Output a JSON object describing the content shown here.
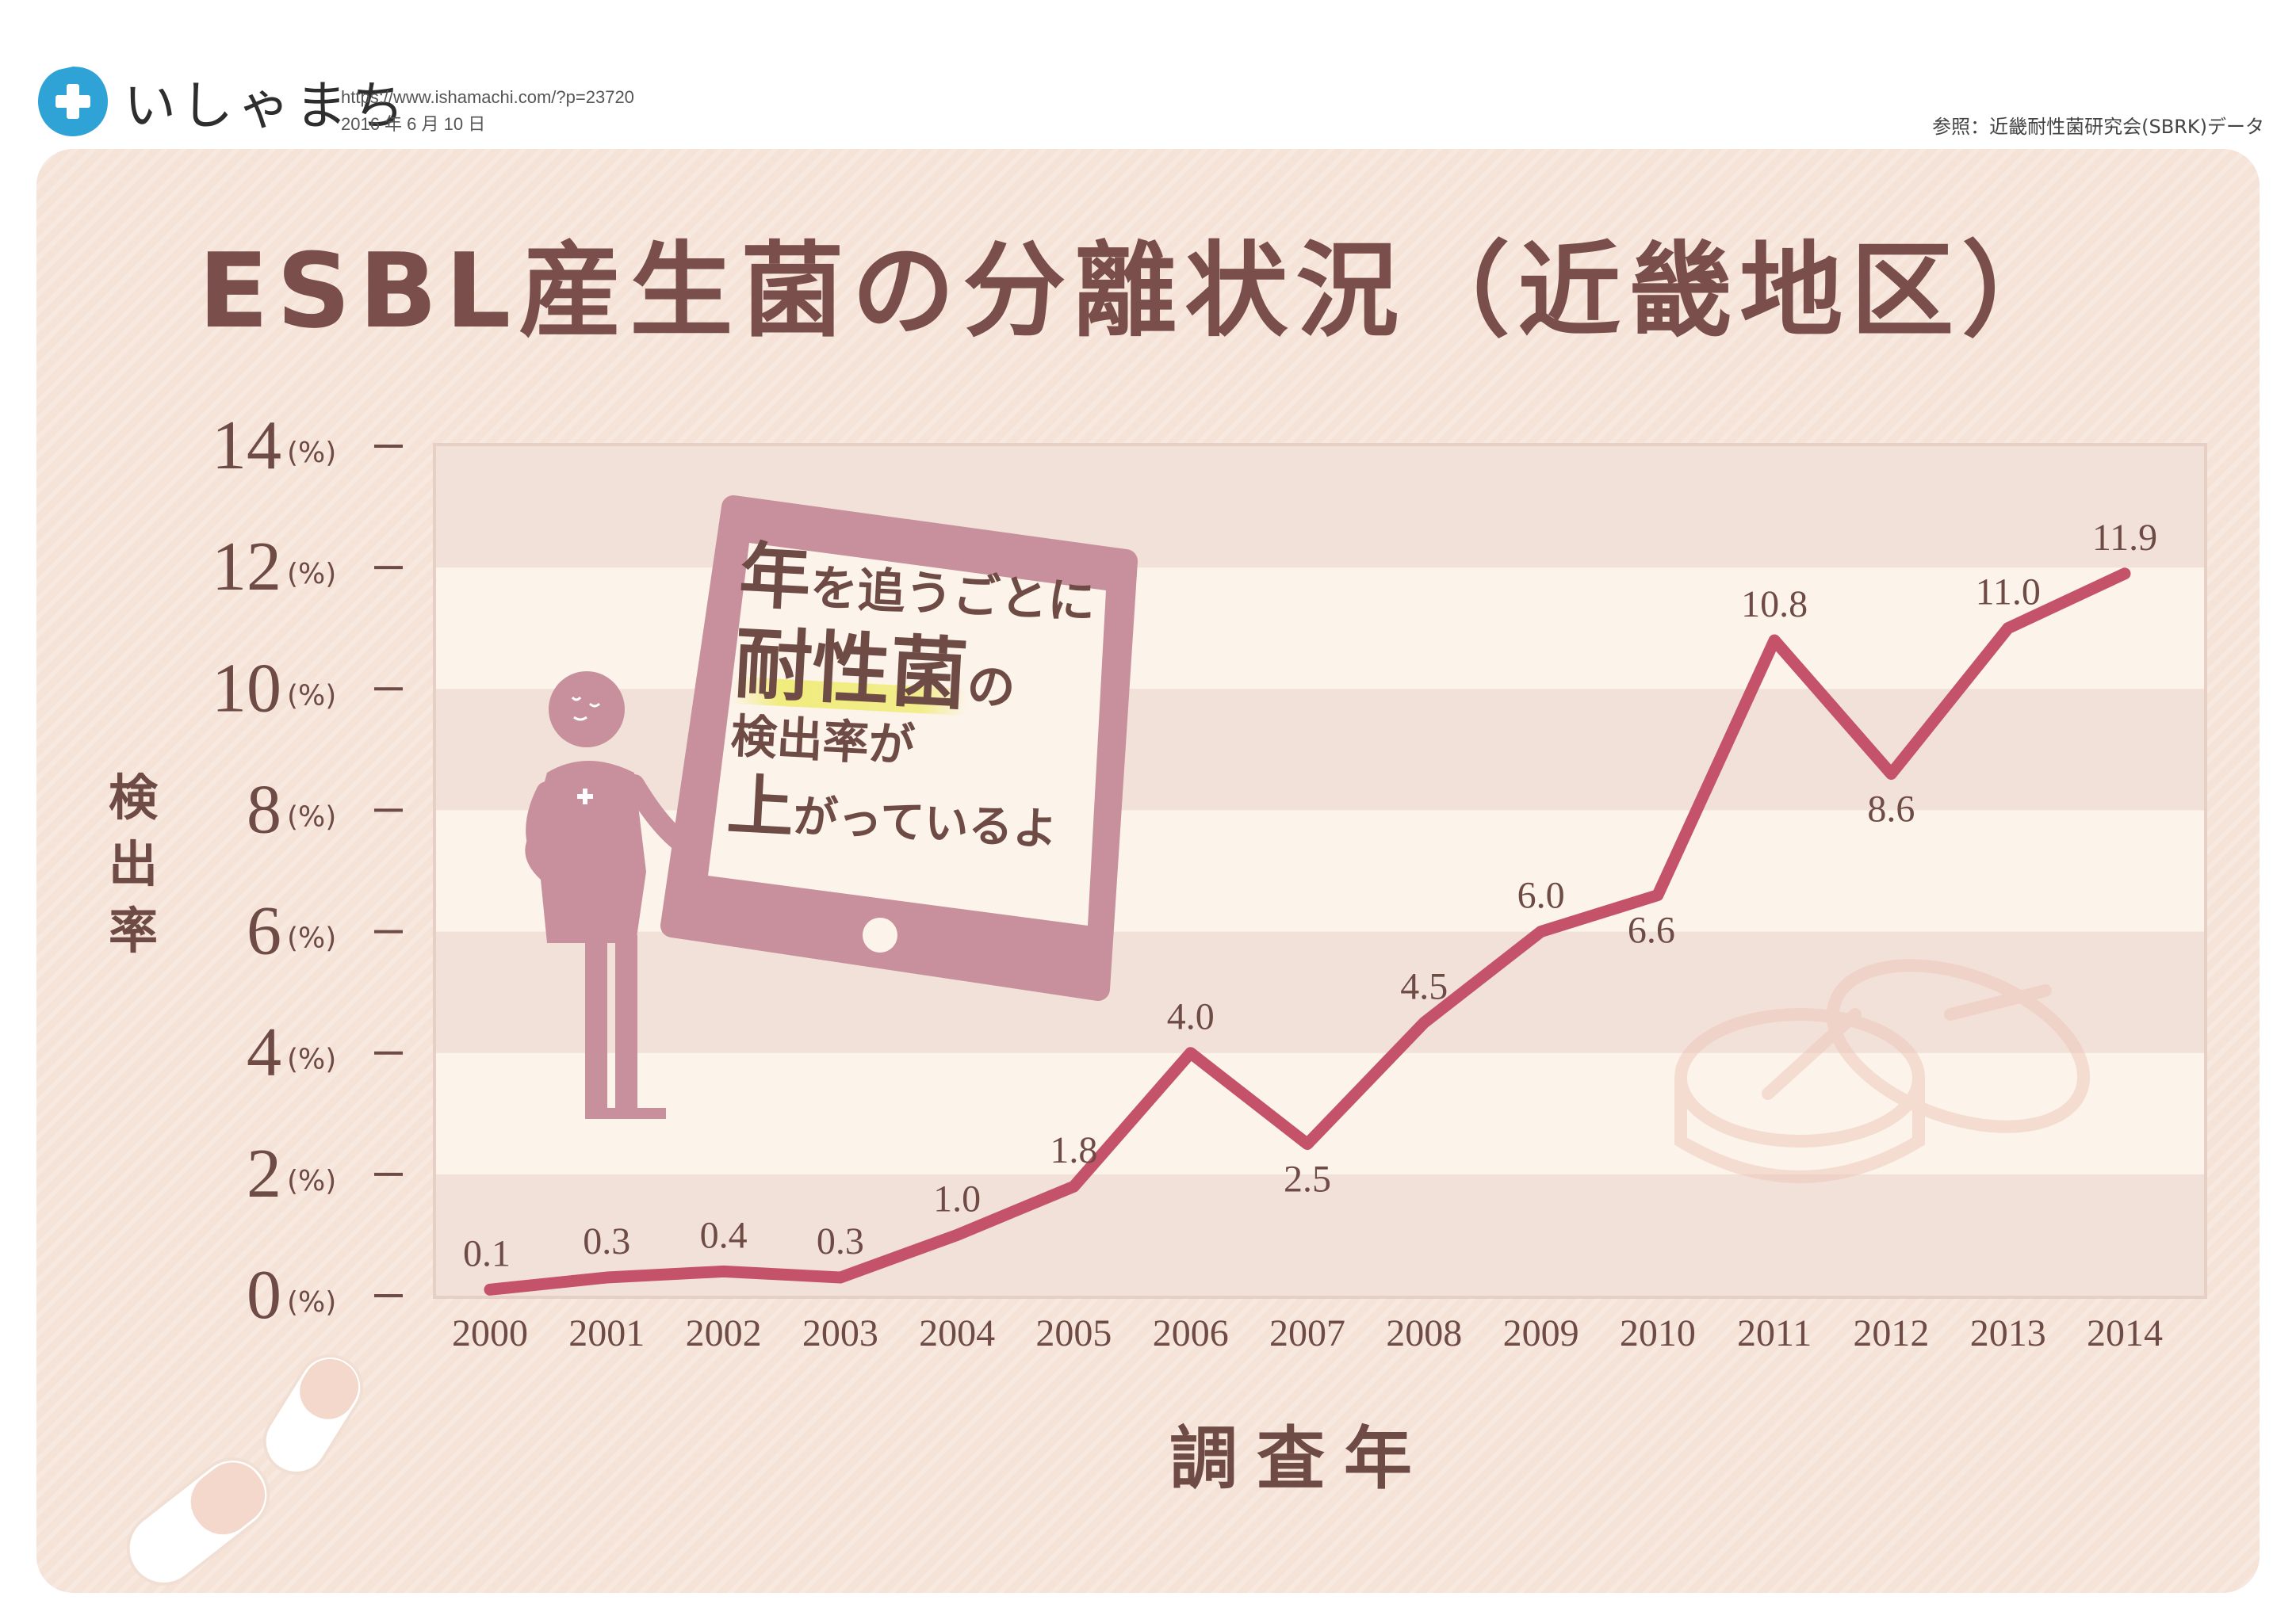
{
  "header": {
    "logo_text": "いしゃまち",
    "url": "https://www.ishamachi.com/?p=23720",
    "date": "2016 年 6 月 10 日",
    "source": "参照：近畿耐性菌研究会(SBRK)データ"
  },
  "speech": {
    "line1_a": "年",
    "line1_b": "を追うごとに",
    "line2_a": "耐性菌",
    "line2_b": "の",
    "line3": "検出率が",
    "line4_a": "上",
    "line4_b": "がっているよ"
  },
  "colors": {
    "line": "#c4536a",
    "text": "#6e4b45",
    "panel": "#f5e3d8",
    "band_light": "#fcf3ea",
    "band_dark": "#f2e1d9",
    "figure": "#c7909c"
  },
  "icons": [
    "plus-drop-logo-icon",
    "person-illustration-icon",
    "tablet-illustration-icon",
    "capsule-icon",
    "tablet-pill-icon"
  ],
  "chart_data": {
    "type": "line",
    "title": "ESBL産生菌の分離状況（近畿地区）",
    "xlabel": "調査年",
    "ylabel": "検出率",
    "y_unit": "(%)",
    "ylim": [
      0,
      14
    ],
    "y_ticks": [
      0,
      2,
      4,
      6,
      8,
      10,
      12,
      14
    ],
    "grid": "horizontal bands",
    "legend": "none",
    "categories": [
      "2000",
      "2001",
      "2002",
      "2003",
      "2004",
      "2005",
      "2006",
      "2007",
      "2008",
      "2009",
      "2010",
      "2011",
      "2012",
      "2013",
      "2014"
    ],
    "series": [
      {
        "values": [
          0.1,
          0.3,
          0.4,
          0.3,
          1.0,
          1.8,
          4.0,
          2.5,
          4.5,
          6.0,
          6.6,
          10.8,
          8.6,
          11.0,
          11.9
        ]
      }
    ],
    "data_labels": [
      "0.1",
      "0.3",
      "0.4",
      "0.3",
      "1.0",
      "1.8",
      "4.0",
      "2.5",
      "4.5",
      "6.0",
      "6.6",
      "10.8",
      "8.6",
      "11.0",
      "11.9"
    ]
  }
}
